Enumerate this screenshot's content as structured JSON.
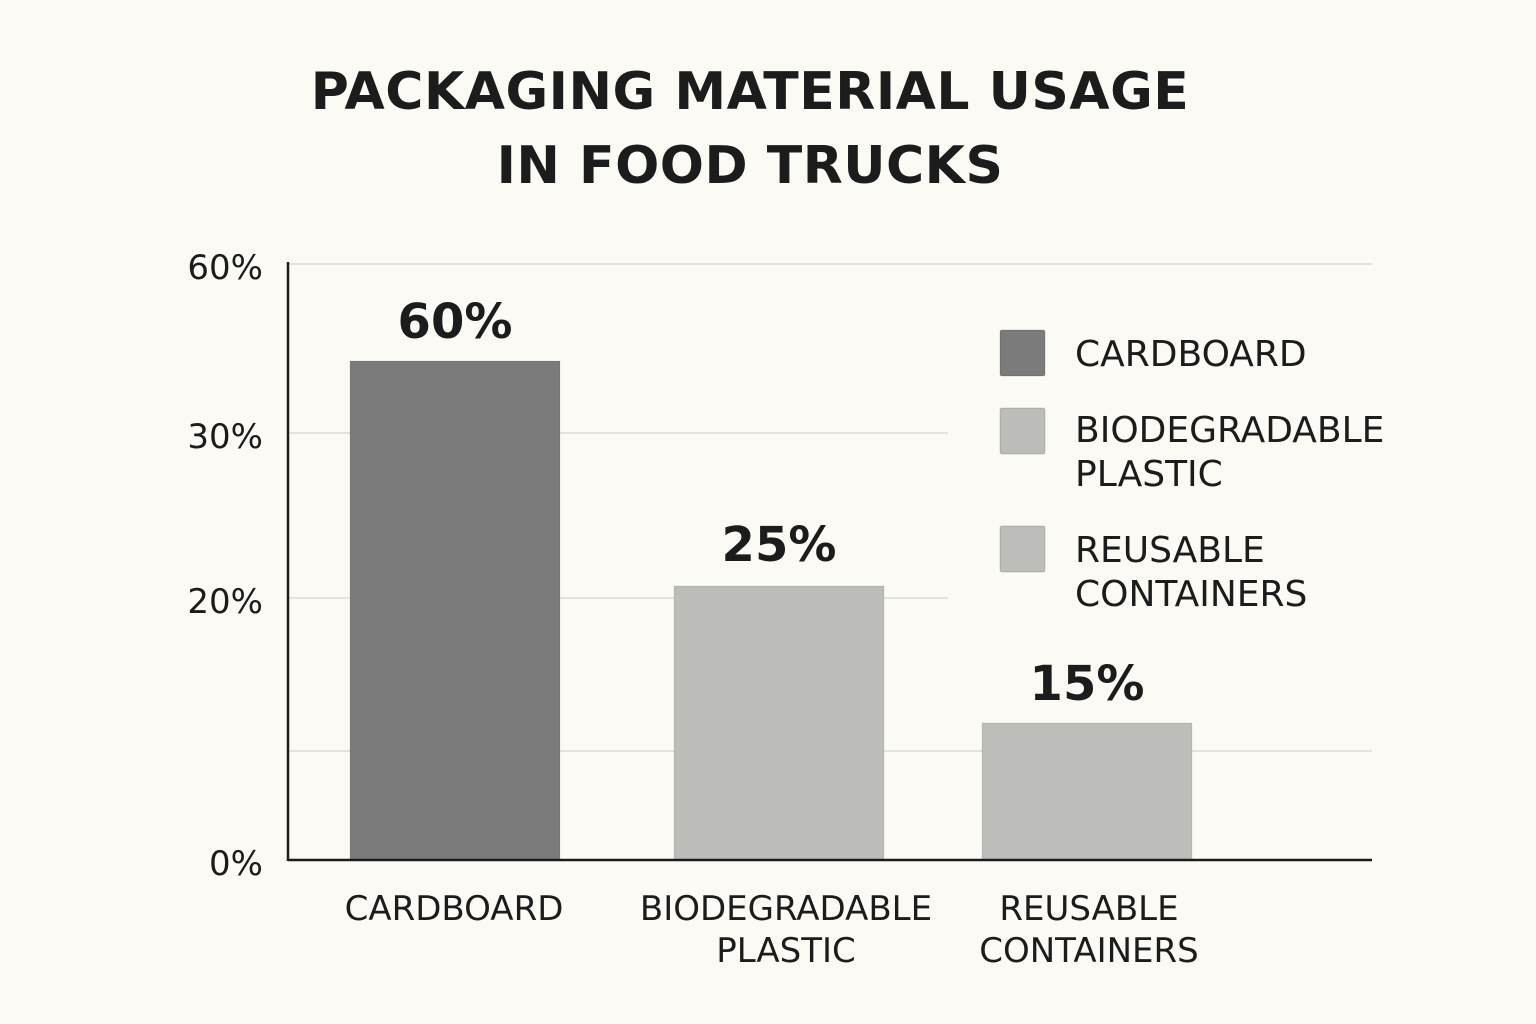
{
  "chart_data": {
    "type": "bar",
    "title_lines": [
      "PACKAGING MATERIAL USAGE",
      "IN FOOD TRUCKS"
    ],
    "categories": [
      [
        "CARDBOARD"
      ],
      [
        "BIODEGRADABLE",
        "PLASTIC"
      ],
      [
        "REUSABLE",
        "CONTAINERS"
      ]
    ],
    "values": [
      60,
      25,
      15
    ],
    "value_labels": [
      "60%",
      "25%",
      "15%"
    ],
    "y_ticks": [
      {
        "label": "60%"
      },
      {
        "label": "30%"
      },
      {
        "label": "20%"
      },
      {
        "label": "0%"
      }
    ],
    "legend": [
      {
        "lines": [
          "CARDBOARD"
        ],
        "color": "#7b7b7b"
      },
      {
        "lines": [
          "BIODEGRADABLE",
          "PLASTIC"
        ],
        "color": "#bcbcb8"
      },
      {
        "lines": [
          "REUSABLE",
          "CONTAINERS"
        ],
        "color": "#bdbdba"
      }
    ],
    "bar_colors": [
      "#7b7b7b",
      "#bcbcb8",
      "#bdbdba"
    ],
    "grid": true,
    "legend_position": "top-right",
    "axis_color": "#1c1c1c",
    "grid_color": "#dcdcd6"
  }
}
